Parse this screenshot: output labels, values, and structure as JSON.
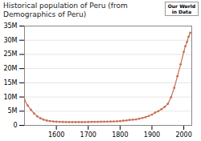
{
  "chart_data": {
    "type": "line",
    "title": "Historical population of Peru (from Demographics of Peru)",
    "annotations": [
      {
        "text": "Our World\nin Data"
      }
    ],
    "x": [
      1500,
      1510,
      1520,
      1530,
      1540,
      1550,
      1560,
      1570,
      1580,
      1590,
      1600,
      1610,
      1620,
      1630,
      1640,
      1650,
      1660,
      1670,
      1680,
      1690,
      1700,
      1710,
      1720,
      1730,
      1740,
      1750,
      1760,
      1770,
      1780,
      1790,
      1800,
      1810,
      1820,
      1830,
      1840,
      1850,
      1860,
      1870,
      1880,
      1890,
      1900,
      1910,
      1920,
      1930,
      1940,
      1950,
      1960,
      1970,
      1980,
      1990,
      2000,
      2005,
      2010,
      2015,
      2020
    ],
    "values": [
      9000000,
      7000000,
      5500000,
      4200000,
      3200000,
      2500000,
      2000000,
      1700000,
      1500000,
      1400000,
      1300000,
      1250000,
      1200000,
      1180000,
      1160000,
      1150000,
      1150000,
      1150000,
      1160000,
      1170000,
      1200000,
      1220000,
      1240000,
      1260000,
      1280000,
      1300000,
      1320000,
      1350000,
      1380000,
      1420000,
      1500000,
      1620000,
      1750000,
      1900000,
      2000000,
      2100000,
      2350000,
      2600000,
      2900000,
      3300000,
      3800000,
      4500000,
      5000000,
      5700000,
      6500000,
      7600000,
      9900000,
      13200000,
      17300000,
      21500000,
      25900000,
      27900000,
      29400000,
      31200000,
      32600000
    ],
    "color": "#c87050",
    "marker": "circle",
    "xlim": [
      1500,
      2025
    ],
    "xticks": [
      1600,
      1700,
      1800,
      1900,
      2000
    ],
    "ylim": [
      0,
      35000000
    ],
    "yticks": [
      0,
      {
        "value": 5000000,
        "label": "5M"
      },
      {
        "value": 10000000,
        "label": "10M"
      },
      {
        "value": 15000000,
        "label": "15M"
      },
      {
        "value": 20000000,
        "label": "20M"
      },
      {
        "value": 25000000,
        "label": "25M"
      },
      {
        "value": 30000000,
        "label": "30M"
      },
      {
        "value": 35000000,
        "label": "35M"
      }
    ],
    "grid": true
  }
}
